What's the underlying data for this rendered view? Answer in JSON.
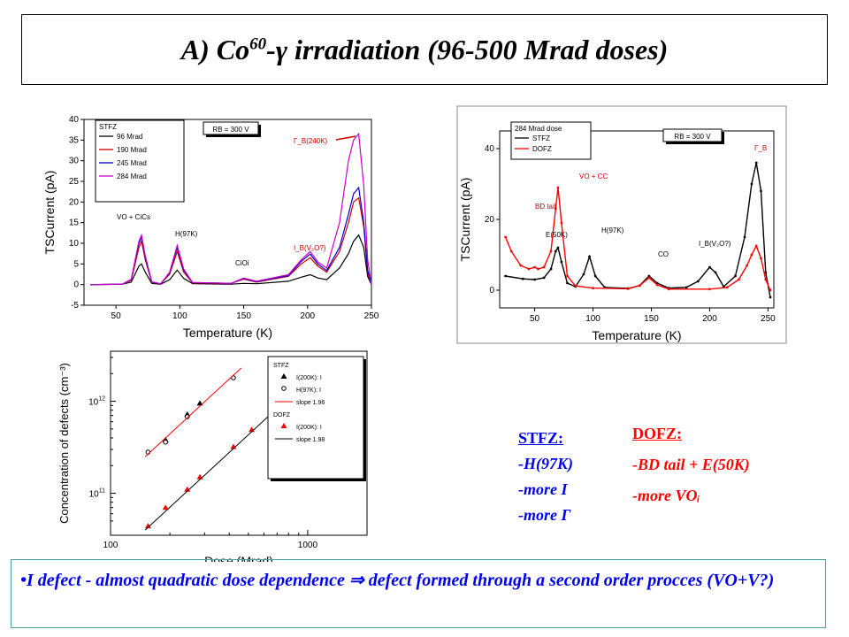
{
  "title": {
    "pre": "A) Co",
    "sup": "60",
    "post": "-γ irradiation (96-500 Mrad doses)"
  },
  "stfz_notes": {
    "head": "STFZ:",
    "lines": [
      "-H(97K)",
      "-more I",
      "-more Γ"
    ]
  },
  "dofz_notes": {
    "head": "DOFZ:",
    "lines": [
      "-BD tail + E(50K)",
      "-more VOᵢ"
    ]
  },
  "conclusion": "•I defect - almost quadratic dose dependence ⇒ defect formed through a second order procces (VO+V?)",
  "chart_data": [
    {
      "type": "line",
      "xlabel": "Temperature (K)",
      "ylabel": "TSCurrent (pA)",
      "xlim": [
        25,
        250
      ],
      "ylim": [
        -5,
        40
      ],
      "xticks": [
        50,
        100,
        150,
        200,
        250
      ],
      "yticks": [
        -5,
        0,
        5,
        10,
        15,
        20,
        25,
        30,
        35,
        40
      ],
      "legend_title": "STFZ",
      "legend_position": "top-left",
      "box_label": "RB = 300 V",
      "annotations": [
        "VO + CiCs",
        "H(97K)",
        "CiOi",
        "I_B(V₂O?)",
        "Γ_B(240K)"
      ],
      "series": [
        {
          "name": "96 Mrad",
          "color": "#000000",
          "points": [
            [
              30,
              0
            ],
            [
              55,
              0.1
            ],
            [
              62,
              0.6
            ],
            [
              68,
              4.5
            ],
            [
              70,
              5
            ],
            [
              73,
              3
            ],
            [
              78,
              0.3
            ],
            [
              85,
              0.1
            ],
            [
              92,
              1.2
            ],
            [
              98,
              3.5
            ],
            [
              103,
              1.5
            ],
            [
              110,
              0.2
            ],
            [
              140,
              0.1
            ],
            [
              150,
              0.3
            ],
            [
              160,
              0.2
            ],
            [
              185,
              0.8
            ],
            [
              195,
              1.8
            ],
            [
              202,
              2.4
            ],
            [
              208,
              1.6
            ],
            [
              215,
              1.2
            ],
            [
              225,
              4
            ],
            [
              232,
              7.5
            ],
            [
              236,
              10.5
            ],
            [
              240,
              12
            ],
            [
              244,
              9
            ],
            [
              247,
              2
            ],
            [
              250,
              0
            ]
          ]
        },
        {
          "name": "190 Mrad",
          "color": "#cc0000",
          "points": [
            [
              30,
              0
            ],
            [
              55,
              0.1
            ],
            [
              62,
              1
            ],
            [
              68,
              9
            ],
            [
              70,
              10.5
            ],
            [
              73,
              6
            ],
            [
              78,
              0.5
            ],
            [
              85,
              0.2
            ],
            [
              92,
              2.5
            ],
            [
              98,
              8
            ],
            [
              103,
              3
            ],
            [
              110,
              0.4
            ],
            [
              140,
              0.3
            ],
            [
              150,
              1.3
            ],
            [
              160,
              0.6
            ],
            [
              185,
              2
            ],
            [
              195,
              5
            ],
            [
              202,
              6.5
            ],
            [
              208,
              4.5
            ],
            [
              215,
              3
            ],
            [
              225,
              8
            ],
            [
              232,
              15
            ],
            [
              236,
              20
            ],
            [
              240,
              21
            ],
            [
              244,
              14
            ],
            [
              247,
              3
            ],
            [
              250,
              0
            ]
          ]
        },
        {
          "name": "245 Mrad",
          "color": "#0000cc",
          "points": [
            [
              30,
              0
            ],
            [
              55,
              0.1
            ],
            [
              62,
              1.2
            ],
            [
              68,
              10
            ],
            [
              70,
              11.5
            ],
            [
              73,
              6.5
            ],
            [
              78,
              0.6
            ],
            [
              85,
              0.2
            ],
            [
              92,
              2.8
            ],
            [
              98,
              9
            ],
            [
              103,
              3.5
            ],
            [
              110,
              0.5
            ],
            [
              140,
              0.3
            ],
            [
              150,
              1.5
            ],
            [
              160,
              0.7
            ],
            [
              185,
              2.2
            ],
            [
              195,
              5.6
            ],
            [
              202,
              7.4
            ],
            [
              208,
              5
            ],
            [
              215,
              3.4
            ],
            [
              225,
              9
            ],
            [
              232,
              17
            ],
            [
              236,
              22
            ],
            [
              240,
              23.5
            ],
            [
              244,
              15
            ],
            [
              247,
              3.5
            ],
            [
              250,
              0
            ]
          ]
        },
        {
          "name": "284 Mrad",
          "color": "#cc00cc",
          "points": [
            [
              30,
              0
            ],
            [
              55,
              0.1
            ],
            [
              62,
              1.3
            ],
            [
              68,
              10.5
            ],
            [
              70,
              12
            ],
            [
              73,
              7
            ],
            [
              78,
              0.7
            ],
            [
              85,
              0.2
            ],
            [
              92,
              3
            ],
            [
              98,
              9.5
            ],
            [
              103,
              3.8
            ],
            [
              110,
              0.5
            ],
            [
              140,
              0.3
            ],
            [
              150,
              1.6
            ],
            [
              160,
              0.8
            ],
            [
              185,
              2.4
            ],
            [
              195,
              6
            ],
            [
              202,
              8
            ],
            [
              208,
              5.5
            ],
            [
              215,
              4
            ],
            [
              225,
              15
            ],
            [
              232,
              30
            ],
            [
              236,
              35
            ],
            [
              240,
              36.5
            ],
            [
              244,
              24
            ],
            [
              247,
              6
            ],
            [
              250,
              0
            ]
          ]
        }
      ]
    },
    {
      "type": "line",
      "xlabel": "Temperature (K)",
      "ylabel": "TSCurrent (pA)",
      "xlim": [
        20,
        255
      ],
      "ylim": [
        -5,
        45
      ],
      "xticks": [
        50,
        100,
        150,
        200,
        250
      ],
      "yticks": [
        0,
        20,
        40
      ],
      "legend_title": "284 Mrad dose",
      "legend_position": "top-left",
      "box_label": "RB = 300 V",
      "annotations": [
        "BD tail",
        "E(50K)",
        "VO + CC",
        "H(97K)",
        "CO",
        "I_B(V₂O?)",
        "Γ_B"
      ],
      "series": [
        {
          "name": "STFZ",
          "color": "#000000",
          "points": [
            [
              25,
              4
            ],
            [
              40,
              3.2
            ],
            [
              50,
              3
            ],
            [
              58,
              3.5
            ],
            [
              64,
              6
            ],
            [
              68,
              11
            ],
            [
              70,
              12
            ],
            [
              73,
              8
            ],
            [
              78,
              2
            ],
            [
              85,
              1
            ],
            [
              92,
              4.5
            ],
            [
              97,
              9.5
            ],
            [
              102,
              4
            ],
            [
              110,
              0.8
            ],
            [
              130,
              0.5
            ],
            [
              140,
              1.3
            ],
            [
              148,
              4
            ],
            [
              155,
              2
            ],
            [
              165,
              0.6
            ],
            [
              180,
              0.8
            ],
            [
              190,
              2.5
            ],
            [
              200,
              6.5
            ],
            [
              205,
              5
            ],
            [
              212,
              1
            ],
            [
              222,
              4
            ],
            [
              230,
              15
            ],
            [
              236,
              30
            ],
            [
              240,
              36
            ],
            [
              244,
              28
            ],
            [
              248,
              5
            ],
            [
              252,
              -2
            ]
          ]
        },
        {
          "name": "DOFZ",
          "color": "#ff0000",
          "points": [
            [
              25,
              15
            ],
            [
              30,
              11
            ],
            [
              38,
              7
            ],
            [
              45,
              6
            ],
            [
              50,
              6.5
            ],
            [
              53,
              6
            ],
            [
              58,
              6.5
            ],
            [
              64,
              11
            ],
            [
              68,
              23
            ],
            [
              70,
              29
            ],
            [
              73,
              19
            ],
            [
              78,
              4
            ],
            [
              85,
              1.2
            ],
            [
              100,
              0.6
            ],
            [
              130,
              0.4
            ],
            [
              140,
              1.3
            ],
            [
              148,
              3.5
            ],
            [
              155,
              1.5
            ],
            [
              165,
              0.3
            ],
            [
              200,
              0.3
            ],
            [
              215,
              0.8
            ],
            [
              225,
              3
            ],
            [
              232,
              7
            ],
            [
              236,
              10
            ],
            [
              240,
              12.5
            ],
            [
              244,
              9
            ],
            [
              248,
              3
            ],
            [
              252,
              0
            ]
          ]
        }
      ]
    },
    {
      "type": "scatter",
      "xlabel": "Dose (Mrad)",
      "ylabel": "Concentration of defects (cm⁻³)",
      "xscale": "log",
      "yscale": "log",
      "xlim": [
        100,
        2000
      ],
      "ylim": [
        35000000000,
        3500000000000
      ],
      "xticks": [
        100,
        1000
      ],
      "yticks": [
        100000000000,
        1000000000000
      ],
      "legend_position": "top-right",
      "legend_groups": [
        "STFZ",
        "DOFZ"
      ],
      "series": [
        {
          "name": "I(200K): I",
          "group": "STFZ",
          "marker": "triangle",
          "color": "#000000",
          "points": [
            [
              190,
              380000000000
            ],
            [
              245,
              720000000000
            ],
            [
              284,
              950000000000
            ]
          ]
        },
        {
          "name": "H(97K): I",
          "group": "STFZ",
          "marker": "circle",
          "color": "#000000",
          "points": [
            [
              155,
              280000000000
            ],
            [
              190,
              360000000000
            ],
            [
              245,
              680000000000
            ],
            [
              420,
              1800000000000
            ]
          ]
        },
        {
          "name": "slope 1.96",
          "group": "STFZ",
          "marker": "line",
          "color": "#ff0000",
          "points": [
            [
              150,
              250000000000
            ],
            [
              460,
              2300000000000
            ]
          ]
        },
        {
          "name": "I(200K): I",
          "group": "DOFZ",
          "marker": "triangle",
          "color": "#ff0000",
          "points": [
            [
              155,
              44000000000
            ],
            [
              190,
              70000000000
            ],
            [
              245,
              110000000000
            ],
            [
              284,
              150000000000
            ],
            [
              420,
              320000000000
            ],
            [
              520,
              490000000000
            ]
          ]
        },
        {
          "name": "slope 1.98",
          "group": "DOFZ",
          "marker": "line",
          "color": "#000000",
          "points": [
            [
              150,
              40000000000
            ],
            [
              1000,
              1700000000000
            ]
          ]
        }
      ]
    }
  ]
}
